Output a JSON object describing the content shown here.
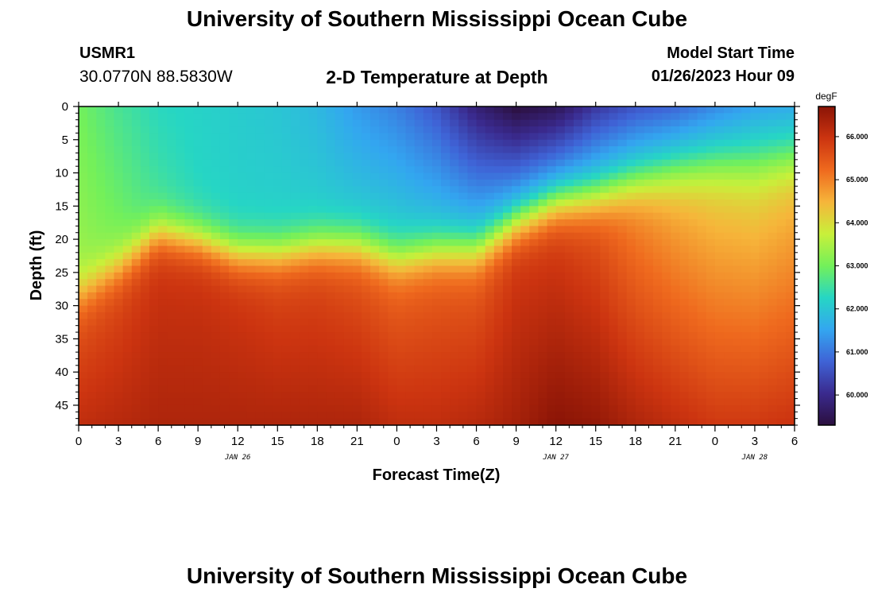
{
  "header": {
    "title": "University of Southern Mississippi Ocean Cube",
    "station": "USMR1",
    "coords": "30.0770N  88.5830W",
    "subtitle": "2-D Temperature at Depth",
    "model_start_label": "Model Start Time",
    "model_start_value": "01/26/2023 Hour 09"
  },
  "footer": {
    "title": "University of Southern Mississippi Ocean Cube"
  },
  "colors": {
    "scale": [
      "#2b0f3e",
      "#3a2a8e",
      "#3f63d6",
      "#33a6f0",
      "#26d6c4",
      "#73f05a",
      "#c8f03a",
      "#f6b53a",
      "#ef6a1e",
      "#cc3410",
      "#8a1406"
    ]
  },
  "chart_data": {
    "type": "heatmap",
    "xlabel": "Forecast Time(Z)",
    "ylabel": "Depth (ft)",
    "x_hours_range": [
      0,
      54
    ],
    "xtick_values": [
      0,
      3,
      6,
      9,
      12,
      15,
      18,
      21,
      24,
      27,
      30,
      33,
      36,
      39,
      42,
      45,
      48,
      51,
      54
    ],
    "xtick_labels": [
      "0",
      "3",
      "6",
      "9",
      "12",
      "15",
      "18",
      "21",
      "0",
      "3",
      "6",
      "9",
      "12",
      "15",
      "18",
      "21",
      "0",
      "3",
      "6"
    ],
    "day_labels": [
      {
        "text": "JAN 26",
        "hour": 12
      },
      {
        "text": "JAN 27",
        "hour": 36
      },
      {
        "text": "JAN 28",
        "hour": 51
      }
    ],
    "ylim": [
      0,
      48
    ],
    "ytick_values": [
      0,
      5,
      10,
      15,
      20,
      25,
      30,
      35,
      40,
      45
    ],
    "ytick_labels": [
      "0",
      "5",
      "10",
      "15",
      "20",
      "25",
      "30",
      "35",
      "40",
      "45"
    ],
    "colorbar": {
      "unit": "degF",
      "range": [
        59.3,
        66.7
      ],
      "ticks": [
        60,
        61,
        62,
        63,
        64,
        65,
        66
      ],
      "tick_labels": [
        "60.000",
        "61.000",
        "62.000",
        "63.000",
        "64.000",
        "65.000",
        "66.000"
      ]
    },
    "profiles": {
      "hours": [
        0,
        3,
        6,
        9,
        12,
        15,
        18,
        21,
        24,
        27,
        30,
        33,
        36,
        39,
        42,
        45,
        48,
        51,
        54
      ],
      "thermocline_depth_ft": [
        28,
        24,
        19,
        20,
        22,
        22,
        21,
        21,
        23,
        22,
        22,
        18,
        15,
        14,
        12,
        11,
        10,
        10,
        9
      ],
      "surface_temp_degF": [
        63.0,
        62.6,
        62.3,
        62.2,
        62.1,
        62.0,
        61.8,
        61.4,
        61.1,
        60.6,
        59.8,
        59.3,
        59.5,
        60.2,
        60.6,
        60.8,
        61.2,
        61.5,
        61.6
      ],
      "upper_layer_bottom_temp_degF": [
        63.4,
        63.1,
        62.6,
        62.3,
        62.2,
        62.2,
        62.2,
        62.2,
        62.3,
        62.2,
        62.2,
        62.1,
        62.1,
        62.3,
        62.4,
        62.6,
        62.6,
        62.7,
        62.7
      ],
      "mid_layer_temp_degF": [
        65.4,
        65.6,
        65.9,
        65.9,
        65.8,
        65.6,
        65.6,
        65.4,
        65.2,
        65.3,
        65.3,
        65.8,
        65.7,
        65.4,
        64.8,
        64.4,
        64.1,
        64.0,
        64.2
      ],
      "bottom_temp_degF": [
        66.1,
        66.2,
        66.3,
        66.3,
        66.3,
        66.3,
        66.3,
        66.3,
        66.1,
        66.1,
        66.2,
        66.4,
        66.7,
        66.6,
        66.3,
        66.1,
        65.9,
        65.9,
        66.0
      ]
    }
  }
}
